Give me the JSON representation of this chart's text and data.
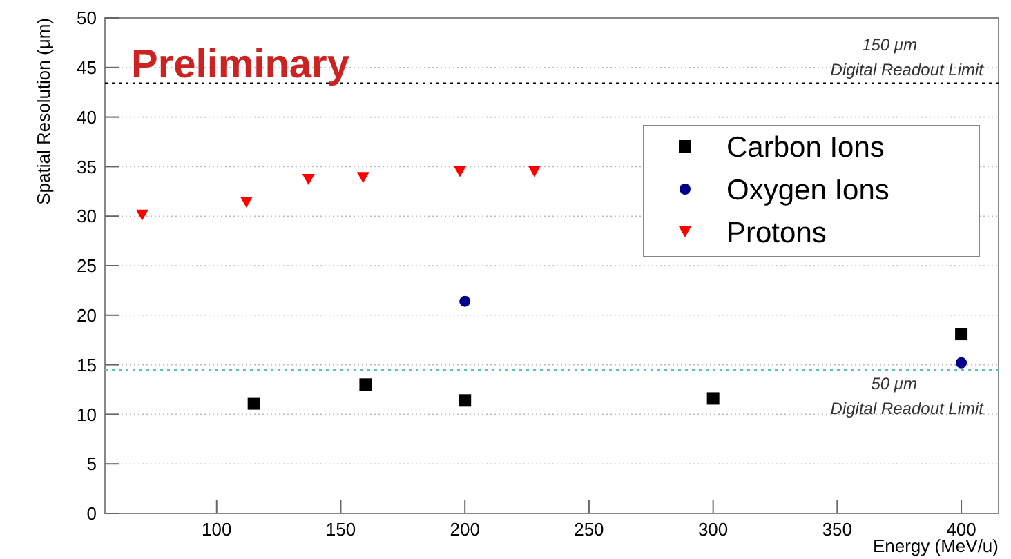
{
  "chart_data": {
    "type": "scatter",
    "xlabel": "Energy (MeV/u)",
    "ylabel": "Spatial Resolution (μm)",
    "xlim": [
      55,
      415
    ],
    "xticks": [
      100,
      150,
      200,
      250,
      300,
      350,
      400
    ],
    "ylim": [
      0,
      50
    ],
    "yticks": [
      0,
      5,
      10,
      15,
      20,
      25,
      30,
      35,
      40,
      45,
      50
    ],
    "grid": "y",
    "legend": "top right",
    "series": [
      {
        "name": "Carbon Ions",
        "color": "#000000",
        "marker": "square",
        "x": [
          115,
          160,
          200,
          300,
          400
        ],
        "values": [
          11.1,
          13.0,
          11.4,
          11.6,
          18.1
        ]
      },
      {
        "name": "Oxygen Ions",
        "color": "#00008b",
        "marker": "circle",
        "x": [
          200,
          400
        ],
        "values": [
          21.4,
          15.2
        ]
      },
      {
        "name": "Protons",
        "color": "#ff0000",
        "marker": "triangle",
        "x": [
          70,
          112,
          137,
          159,
          198,
          228
        ],
        "values": [
          30.1,
          31.4,
          33.7,
          33.9,
          34.5,
          34.5
        ]
      }
    ],
    "ref_lines": [
      {
        "axis": "y",
        "value": 43.4,
        "label": "150 μm\nDigital Readout Limit",
        "color": "#000000",
        "line_style": "dotted"
      },
      {
        "axis": "y",
        "value": 14.5,
        "label": "50 μm\nDigital Readout Limit",
        "color": "#5fbfbf",
        "line_style": "dotted"
      }
    ],
    "annotations": [
      "Preliminary"
    ]
  }
}
